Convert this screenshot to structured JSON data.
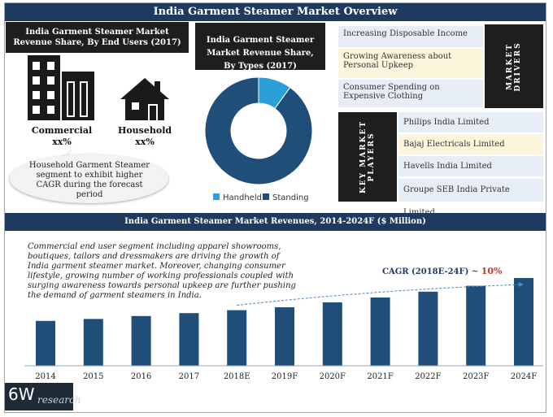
{
  "header": {
    "title": "India Garment Steamer Market Overview"
  },
  "end_users": {
    "label": "India Garment Steamer Market Revenue Share, By  End Users (2017)",
    "commercial_label": "Commercial",
    "commercial_value": "xx%",
    "household_label": "Household",
    "household_value": "xx%",
    "callout": "Household Garment Steamer segment to exhibit higher CAGR during the forecast period"
  },
  "types": {
    "label": "India Garment Steamer Market Revenue Share, By Types (2017)",
    "legend": [
      "Handheld",
      "Standing"
    ]
  },
  "drivers": {
    "title": "MARKET DRIVERS",
    "items": [
      "Increasing Disposable Income",
      "Growing Awareness about Personal Upkeep",
      "Consumer Spending on Expensive Clothing"
    ]
  },
  "players": {
    "title": "KEY MARKET PLAYERS",
    "items": [
      "Philips India Limited",
      "Bajaj Electricals Limited",
      "Havells India Limited",
      "Groupe SEB India Private Limited"
    ]
  },
  "revenues": {
    "title": "India  Garment Steamer Market Revenues, 2014-2024F ($ Million)",
    "paragraph": "Commercial end user segment including apparel showrooms, boutiques, tailors and dressmakers are driving the growth of India garment steamer market. Moreover, changing consumer lifestyle, growing number of working professionals coupled with surging awareness towards personal upkeep are further pushing the demand of garment steamers in India.",
    "cagr_label": "CAGR (2018E-24F) ~ ",
    "cagr_value": "10%"
  },
  "logo": {
    "big": "6W",
    "small": "research"
  },
  "colors": {
    "navy": "#1f3a5f",
    "bar": "#1f4e79",
    "light": "#2b9fd8",
    "dark": "#1e1e1e",
    "highlight": "#fdf5dc",
    "soft": "#e7edf5"
  },
  "chart_data": [
    {
      "type": "pie",
      "title": "India Garment Steamer Market Revenue Share, By Types (2017)",
      "categories": [
        "Handheld",
        "Standing"
      ],
      "values": [
        10,
        90
      ],
      "colors": [
        "#2b9fd8",
        "#1f4e79"
      ],
      "legend": "bottom"
    },
    {
      "type": "bar",
      "title": "India  Garment Steamer Market Revenues, 2014-2024F ($ Million)",
      "categories": [
        "2014",
        "2015",
        "2016",
        "2017",
        "2018E",
        "2019F",
        "2020F",
        "2021F",
        "2022F",
        "2023F",
        "2024F"
      ],
      "values": [
        46,
        48,
        51,
        54,
        57,
        60,
        65,
        70,
        76,
        82,
        90
      ],
      "ylim": [
        0,
        100
      ],
      "grid": false
    }
  ]
}
